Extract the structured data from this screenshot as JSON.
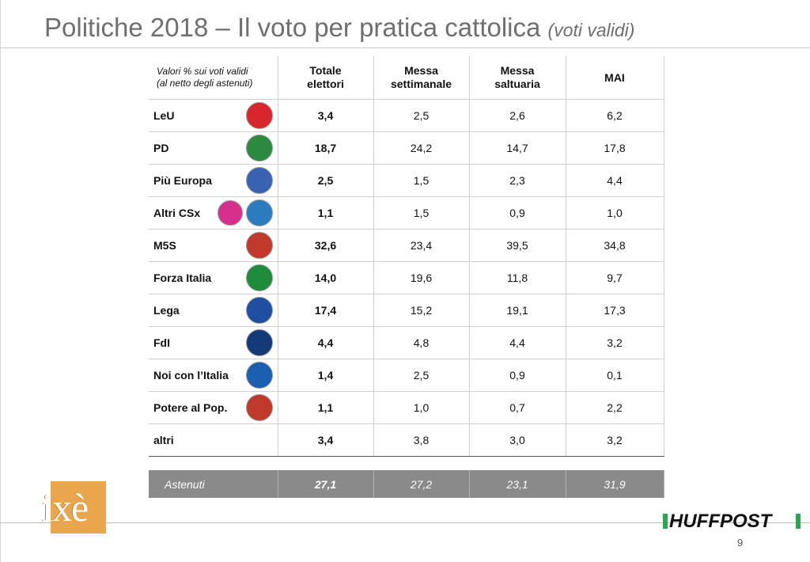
{
  "title": {
    "main": "Politiche 2018 – Il voto per pratica cattolica",
    "sub": "(voti validi)"
  },
  "table": {
    "header_note_line1": "Valori % sui voti validi",
    "header_note_line2": "(al netto degli astenuti)",
    "columns": [
      {
        "line1": "Totale",
        "line2": "elettori"
      },
      {
        "line1": "Messa",
        "line2": "settimanale"
      },
      {
        "line1": "Messa",
        "line2": "saltuaria"
      },
      {
        "line1": "MAI",
        "line2": ""
      }
    ],
    "rows": [
      {
        "party": "LeU",
        "logo": "leu-logo",
        "logo_text": "Liberi e Uguali",
        "logo_color": "#d8262c",
        "values": [
          "3,4",
          "2,5",
          "2,6",
          "6,2"
        ]
      },
      {
        "party": "PD",
        "logo": "pd-logo",
        "logo_text": "PD",
        "logo_color": "#2b8a3e",
        "values": [
          "18,7",
          "24,2",
          "14,7",
          "17,8"
        ]
      },
      {
        "party": "Più Europa",
        "logo": "piu-europa-logo",
        "logo_text": "+EUROPA",
        "logo_color": "#3a62b3",
        "values": [
          "2,5",
          "1,5",
          "2,3",
          "4,4"
        ]
      },
      {
        "party": "Altri CSx",
        "logo": "insieme-logo",
        "logo_text": "insieme",
        "logo_color": "#2b7bbf",
        "values": [
          "1,1",
          "1,5",
          "0,9",
          "1,0"
        ]
      },
      {
        "party": "M5S",
        "logo": "m5s-logo",
        "logo_text": "MOVIMENTO",
        "logo_color": "#c0392b",
        "values": [
          "32,6",
          "23,4",
          "39,5",
          "34,8"
        ]
      },
      {
        "party": "Forza Italia",
        "logo": "forza-italia-logo",
        "logo_text": "FORZA ITALIA",
        "logo_color": "#1e8c3a",
        "values": [
          "14,0",
          "19,6",
          "11,8",
          "9,7"
        ]
      },
      {
        "party": "Lega",
        "logo": "lega-logo",
        "logo_text": "LEGA",
        "logo_color": "#1f4fa0",
        "values": [
          "17,4",
          "15,2",
          "19,1",
          "17,3"
        ]
      },
      {
        "party": "FdI",
        "logo": "fdi-logo",
        "logo_text": "MELONI",
        "logo_color": "#153a7a",
        "values": [
          "4,4",
          "4,8",
          "4,4",
          "3,2"
        ]
      },
      {
        "party": "Noi con l’Italia",
        "logo": "noi-con-italia-logo",
        "logo_text": "NOI CON L'ITALIA",
        "logo_color": "#1b5fb0",
        "values": [
          "1,4",
          "2,5",
          "0,9",
          "0,1"
        ]
      },
      {
        "party": "Potere al Pop.",
        "logo": "potere-al-popolo-logo",
        "logo_text": "potere al popolo",
        "logo_color": "#c0392b",
        "values": [
          "1,1",
          "1,0",
          "0,7",
          "2,2"
        ]
      },
      {
        "party": "altri",
        "logo": "",
        "logo_text": "",
        "logo_color": "",
        "values": [
          "3,4",
          "3,8",
          "3,0",
          "3,2"
        ]
      }
    ],
    "astenuti": {
      "label": "Astenuti",
      "values": [
        "27,1",
        "27,2",
        "23,1",
        "31,9"
      ]
    }
  },
  "footer": {
    "brand_left": "ixè",
    "brand_right": "HUFFPOST",
    "page_number": "9",
    "brand_left_color": "#e9a64d",
    "brand_right_accent": "#2aa652"
  }
}
